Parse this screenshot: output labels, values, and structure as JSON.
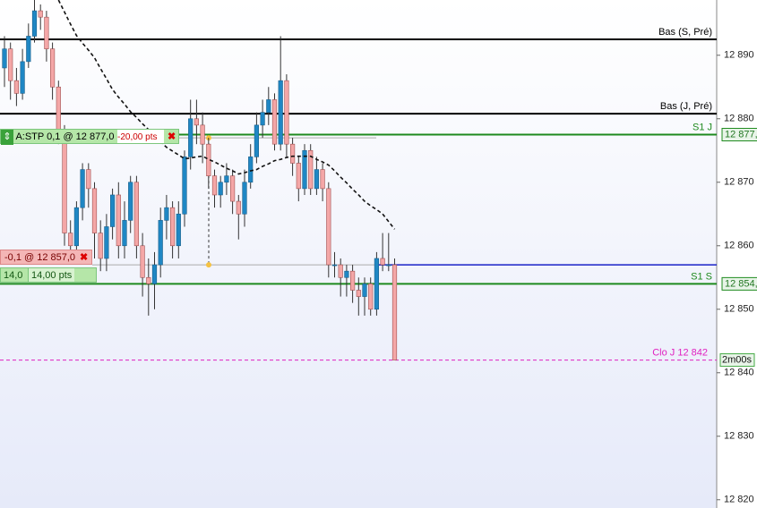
{
  "chart_data": {
    "type": "candlestick",
    "open": [
      12888,
      12891,
      12886,
      12884,
      12889,
      12893,
      12897,
      12896,
      12891,
      12885,
      12878,
      12862,
      12860,
      12866,
      12872,
      12869,
      12862,
      12858,
      12863,
      12868,
      12860,
      12864,
      12870,
      12860,
      12855,
      12854,
      12857,
      12864,
      12866,
      12860,
      12865,
      12874,
      12880,
      12879,
      12876,
      12871,
      12868,
      12870,
      12871,
      12867,
      12865,
      12870,
      12874,
      12879,
      12881,
      12883,
      12876,
      12886,
      12876,
      12873,
      12869,
      12875,
      12869,
      12872,
      12869,
      12857,
      12857,
      12855,
      12856,
      12853,
      12852,
      12854,
      12850,
      12858,
      12857,
      12857
    ],
    "high": [
      12893,
      12892,
      12888,
      12891,
      12895,
      12899,
      12898,
      12897,
      12892,
      12886,
      12879,
      12864,
      12867,
      12873,
      12873,
      12870,
      12864,
      12865,
      12869,
      12870,
      12867,
      12871,
      12871,
      12862,
      12858,
      12859,
      12866,
      12868,
      12867,
      12867,
      12875,
      12883,
      12883,
      12881,
      12877,
      12872,
      12871,
      12873,
      12872,
      12868,
      12872,
      12876,
      12881,
      12883,
      12885,
      12884,
      12893,
      12887,
      12877,
      12874,
      12876,
      12876,
      12874,
      12873,
      12870,
      12859,
      12858,
      12857,
      12857,
      12855,
      12855,
      12855,
      12859,
      12862,
      12862,
      12858
    ],
    "low": [
      12885,
      12883,
      12882,
      12883,
      12888,
      12892,
      12894,
      12889,
      12883,
      12876,
      12860,
      12858,
      12858,
      12864,
      12866,
      12858,
      12856,
      12856,
      12861,
      12858,
      12858,
      12862,
      12858,
      12852,
      12849,
      12850,
      12855,
      12861,
      12858,
      12858,
      12863,
      12872,
      12876,
      12873,
      12869,
      12866,
      12866,
      12868,
      12865,
      12861,
      12863,
      12869,
      12873,
      12877,
      12879,
      12875,
      12875,
      12874,
      12871,
      12867,
      12868,
      12868,
      12868,
      12867,
      12855,
      12855,
      12852,
      12852,
      12851,
      12849,
      12849,
      12849,
      12849,
      12856,
      12856,
      12842
    ],
    "close": [
      12891,
      12886,
      12884,
      12889,
      12893,
      12897,
      12896,
      12891,
      12885,
      12878,
      12862,
      12860,
      12866,
      12872,
      12869,
      12862,
      12858,
      12863,
      12868,
      12860,
      12864,
      12870,
      12860,
      12855,
      12854,
      12857,
      12864,
      12866,
      12860,
      12865,
      12874,
      12880,
      12879,
      12876,
      12871,
      12868,
      12870,
      12871,
      12867,
      12865,
      12870,
      12874,
      12879,
      12881,
      12883,
      12876,
      12886,
      12876,
      12873,
      12869,
      12875,
      12869,
      12872,
      12869,
      12857,
      12857,
      12855,
      12856,
      12853,
      12852,
      12854,
      12850,
      12858,
      12857,
      12857,
      12842
    ],
    "up_color": "#1f87c4",
    "down_color": "#f4a7a7",
    "ma": {
      "color": "#111111",
      "values": [
        null,
        null,
        null,
        null,
        null,
        null,
        null,
        null,
        null,
        12898.7,
        12896.8,
        12894.9,
        12893.1,
        12891.9,
        12890.8,
        12889.6,
        12887.9,
        12886.3,
        12884.6,
        12883.4,
        12882.3,
        12881.1,
        12880.2,
        12879.2,
        12878.3,
        12877.4,
        12876.4,
        12875.5,
        12874.9,
        12874.3,
        12873.7,
        12873.8,
        12874.0,
        12874.1,
        12873.6,
        12873.2,
        12872.7,
        12872.2,
        12871.8,
        12871.3,
        12871.5,
        12871.8,
        12872.0,
        12872.5,
        12872.9,
        12873.4,
        12873.6,
        12873.9,
        12874.1,
        12874.1,
        12874.1,
        12874.1,
        12873.6,
        12873.2,
        12872.7,
        12871.8,
        12870.8,
        12869.9,
        12868.9,
        12868.0,
        12867.0,
        12866.3,
        12865.7,
        12865.0,
        12863.8,
        12862.6
      ]
    },
    "ylim": [
      12818.7,
      12898.7
    ],
    "yticks": [
      {
        "value": 12890,
        "label": "12 890"
      },
      {
        "value": 12880,
        "label": "12 880"
      },
      {
        "value": 12870,
        "label": "12 870"
      },
      {
        "value": 12860,
        "label": "12 860"
      },
      {
        "value": 12850,
        "label": "12 850"
      },
      {
        "value": 12840,
        "label": "12 840"
      },
      {
        "value": 12830,
        "label": "12 830"
      },
      {
        "value": 12820,
        "label": "12 820"
      }
    ],
    "levels": [
      {
        "label": "Bas (S, Pré)",
        "value": 12892.5,
        "color": "#000000"
      },
      {
        "label": "Bas (J, Pré)",
        "value": 12880.8,
        "color": "#000000"
      },
      {
        "label": "S1 J",
        "value": 12877.5,
        "color": "#1e8a1e",
        "axis_label": "12 877,"
      },
      {
        "label": "S1 S",
        "value": 12854.0,
        "color": "#1e8a1e",
        "axis_label": "12 854,"
      }
    ],
    "close_line": {
      "label": "Clo J 12 842",
      "value": 12842,
      "color": "#e020c0",
      "timer": "2m00s"
    },
    "orders": {
      "stop": {
        "price": 12877,
        "label": "A:STP 0,1 @ 12 877,0",
        "pts": "-20,00 pts"
      },
      "limit": {
        "price": 12857,
        "label": "-0,1 @ 12 857,0",
        "qty": "14,0",
        "pts": "14,00 pts",
        "line_color": "#1a22c8"
      }
    }
  }
}
